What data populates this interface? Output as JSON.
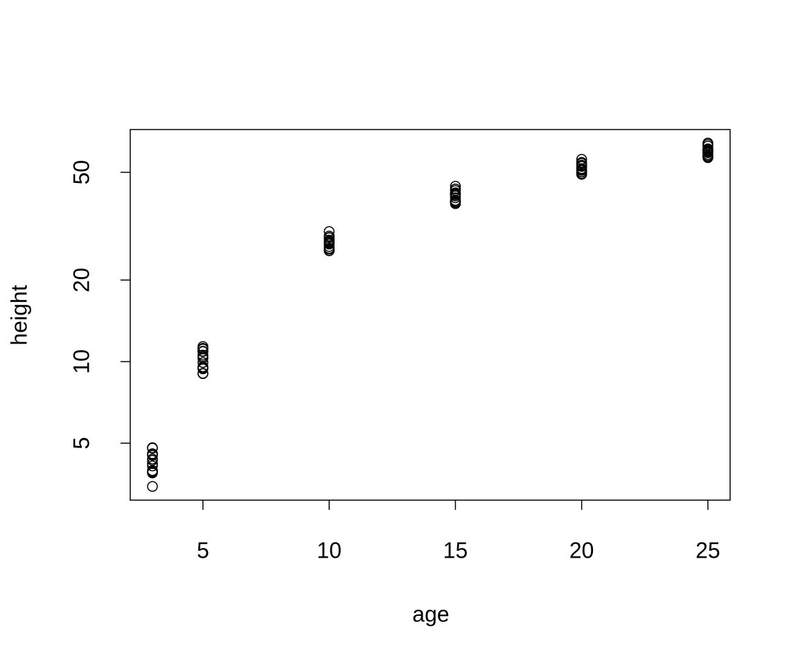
{
  "chart_data": {
    "type": "scatter",
    "x_label": "age",
    "y_label": "height",
    "x": [
      3,
      3,
      3,
      3,
      3,
      3,
      3,
      3,
      3,
      3,
      3,
      3,
      3,
      3,
      5,
      5,
      5,
      5,
      5,
      5,
      5,
      5,
      5,
      5,
      5,
      5,
      5,
      5,
      10,
      10,
      10,
      10,
      10,
      10,
      10,
      10,
      10,
      10,
      10,
      10,
      10,
      10,
      15,
      15,
      15,
      15,
      15,
      15,
      15,
      15,
      15,
      15,
      15,
      15,
      15,
      15,
      20,
      20,
      20,
      20,
      20,
      20,
      20,
      20,
      20,
      20,
      20,
      20,
      20,
      20,
      25,
      25,
      25,
      25,
      25,
      25,
      25,
      25,
      25,
      25,
      25,
      25,
      25,
      25
    ],
    "values": [
      4.51,
      4.55,
      4.79,
      3.91,
      4.81,
      3.88,
      4.32,
      4.57,
      3.93,
      3.46,
      4.12,
      4.2,
      4.37,
      3.96,
      10.89,
      10.92,
      11.37,
      9.48,
      11.2,
      9.4,
      10.43,
      10.57,
      9.03,
      9.05,
      9.92,
      9.57,
      10.28,
      11.13,
      28.72,
      29.07,
      30.21,
      25.66,
      28.66,
      26.2,
      27.41,
      27.93,
      26.01,
      25.71,
      27.63,
      26.61,
      27.15,
      28.1,
      41.74,
      42.83,
      44.4,
      39.07,
      41.66,
      38.3,
      41.32,
      40.26,
      38.93,
      38.62,
      40.9,
      39.4,
      42.0,
      43.4,
      52.7,
      53.88,
      55.82,
      50.78,
      52.65,
      49.12,
      52.56,
      51.2,
      50.05,
      49.4,
      51.6,
      50.1,
      53.1,
      54.4,
      60.92,
      63.39,
      64.1,
      59.07,
      59.49,
      57.07,
      61.0,
      60.28,
      58.16,
      56.6,
      59.8,
      57.5,
      60.4,
      62.5
    ],
    "color": "#000000",
    "xlim": [
      2.12,
      25.88
    ],
    "xticks": [
      5,
      10,
      15,
      20,
      25
    ],
    "ylim": [
      3.08,
      71.9
    ],
    "yticks": [
      5,
      10,
      20,
      50
    ],
    "y_log": true
  }
}
